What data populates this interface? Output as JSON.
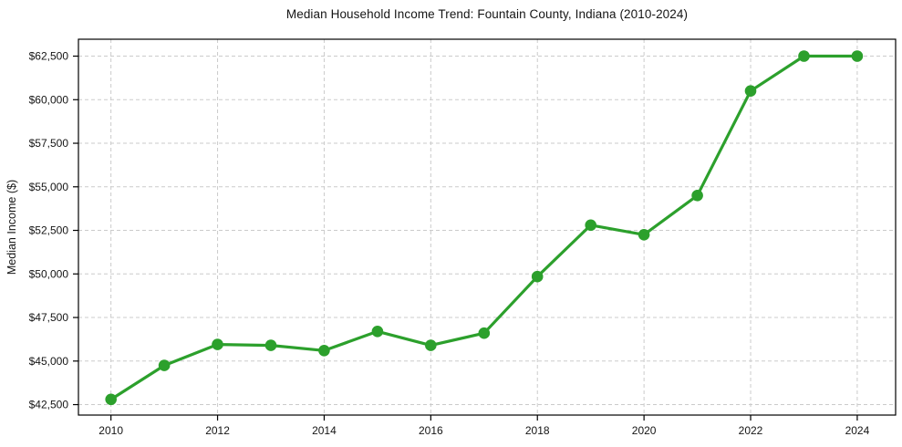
{
  "chart_data": {
    "type": "line",
    "title": "Median Household Income Trend: Fountain County, Indiana (2010-2024)",
    "xlabel": "",
    "ylabel": "Median Income ($)",
    "x": [
      2010,
      2011,
      2012,
      2013,
      2014,
      2015,
      2016,
      2017,
      2018,
      2019,
      2020,
      2021,
      2022,
      2023,
      2024
    ],
    "series": [
      {
        "name": "Median Household Income",
        "values": [
          42800,
          44750,
          45950,
          45900,
          45600,
          46700,
          45900,
          46600,
          49850,
          52800,
          52250,
          54500,
          60500,
          62500,
          62500
        ]
      }
    ],
    "x_tick_values": [
      2010,
      2012,
      2014,
      2016,
      2018,
      2020,
      2022,
      2024
    ],
    "x_tick_labels": [
      "2010",
      "2012",
      "2014",
      "2016",
      "2018",
      "2020",
      "2022",
      "2024"
    ],
    "y_tick_values": [
      42500,
      45000,
      47500,
      50000,
      52500,
      55000,
      57500,
      60000,
      62500
    ],
    "y_tick_labels": [
      "$42,500",
      "$45,000",
      "$47,500",
      "$50,000",
      "$52,500",
      "$55,000",
      "$57,500",
      "$60,000",
      "$62,500"
    ],
    "xlim": [
      2009.39,
      2024.72
    ],
    "ylim": [
      41900,
      63470
    ],
    "grid": true,
    "grid_style": "dashed",
    "legend": null,
    "colors": {
      "line": "#2ca02c",
      "marker": "#2ca02c",
      "grid": "#cbcbcb",
      "spine": "#000000",
      "text": "#151515",
      "background": "#ffffff"
    }
  }
}
